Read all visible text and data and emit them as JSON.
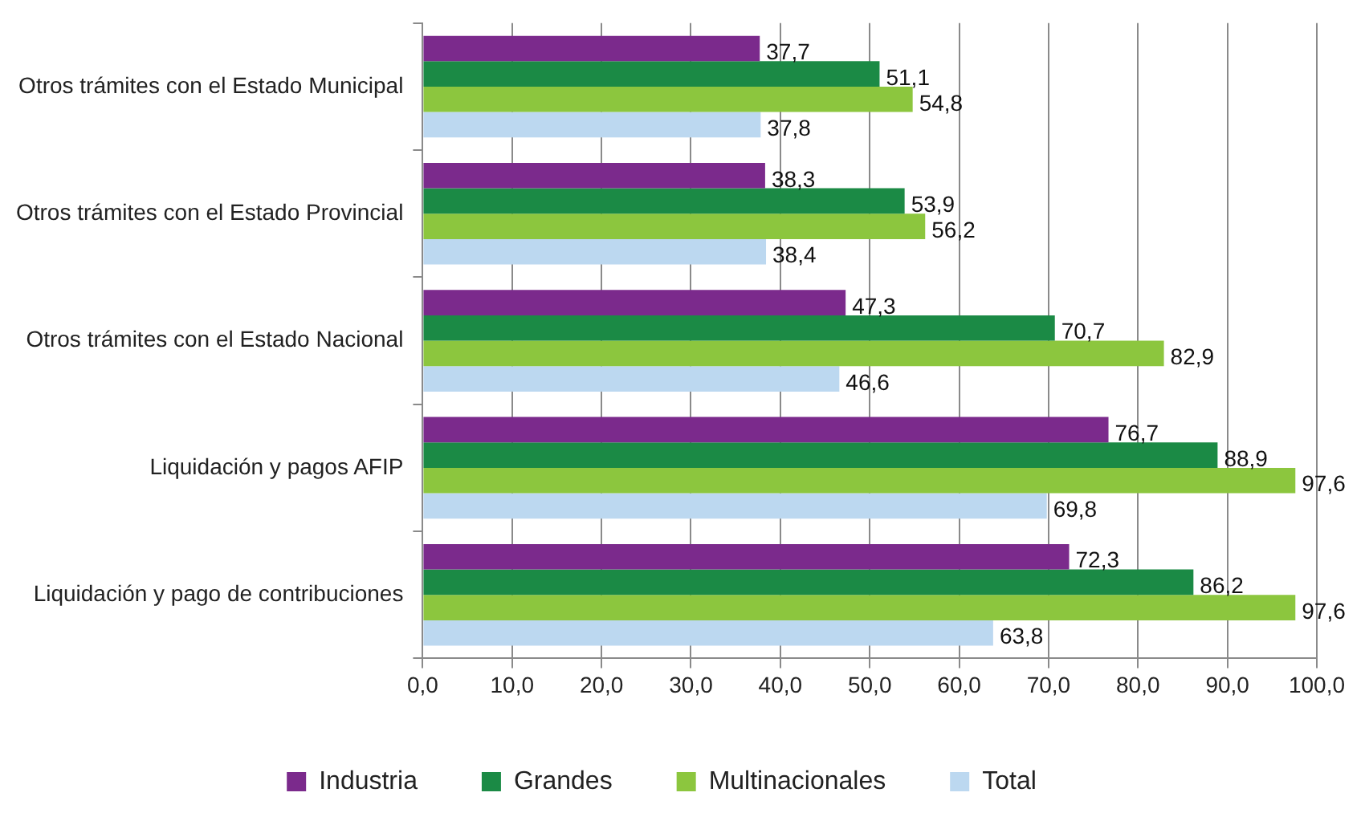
{
  "chart_data": {
    "type": "bar",
    "orientation": "horizontal",
    "categories": [
      "Otros trámites con el Estado Municipal",
      "Otros trámites con el Estado Provincial",
      "Otros trámites con el Estado Nacional",
      "Liquidación y pagos AFIP",
      "Liquidación y pago de contribuciones"
    ],
    "series": [
      {
        "name": "Industria",
        "color": "#7b2a8c",
        "values": [
          37.7,
          38.3,
          47.3,
          76.7,
          72.3
        ],
        "value_labels": [
          "37,7",
          "38,3",
          "47,3",
          "76,7",
          "72,3"
        ]
      },
      {
        "name": "Grandes",
        "color": "#1b8a45",
        "values": [
          51.1,
          53.9,
          70.7,
          88.9,
          86.2
        ],
        "value_labels": [
          "51,1",
          "53,9",
          "70,7",
          "88,9",
          "86,2"
        ]
      },
      {
        "name": "Multinacionales",
        "color": "#8cc63e",
        "values": [
          54.8,
          56.2,
          82.9,
          97.6,
          97.6
        ],
        "value_labels": [
          "54,8",
          "56,2",
          "82,9",
          "97,6",
          "97,6"
        ]
      },
      {
        "name": "Total",
        "color": "#bcd8f0",
        "values": [
          37.8,
          38.4,
          46.6,
          69.8,
          63.8
        ],
        "value_labels": [
          "37,8",
          "38,4",
          "46,6",
          "69,8",
          "63,8"
        ]
      }
    ],
    "xlim": [
      0,
      100
    ],
    "xticks": [
      {
        "value": 0,
        "label": "0,0"
      },
      {
        "value": 10,
        "label": "10,0"
      },
      {
        "value": 20,
        "label": "20,0"
      },
      {
        "value": 30,
        "label": "30,0"
      },
      {
        "value": 40,
        "label": "40,0"
      },
      {
        "value": 50,
        "label": "50,0"
      },
      {
        "value": 60,
        "label": "60,0"
      },
      {
        "value": 70,
        "label": "70,0"
      },
      {
        "value": 80,
        "label": "80,0"
      },
      {
        "value": 90,
        "label": "90,0"
      },
      {
        "value": 100,
        "label": "100,0"
      }
    ],
    "grid": "x",
    "legend": "bottom"
  }
}
